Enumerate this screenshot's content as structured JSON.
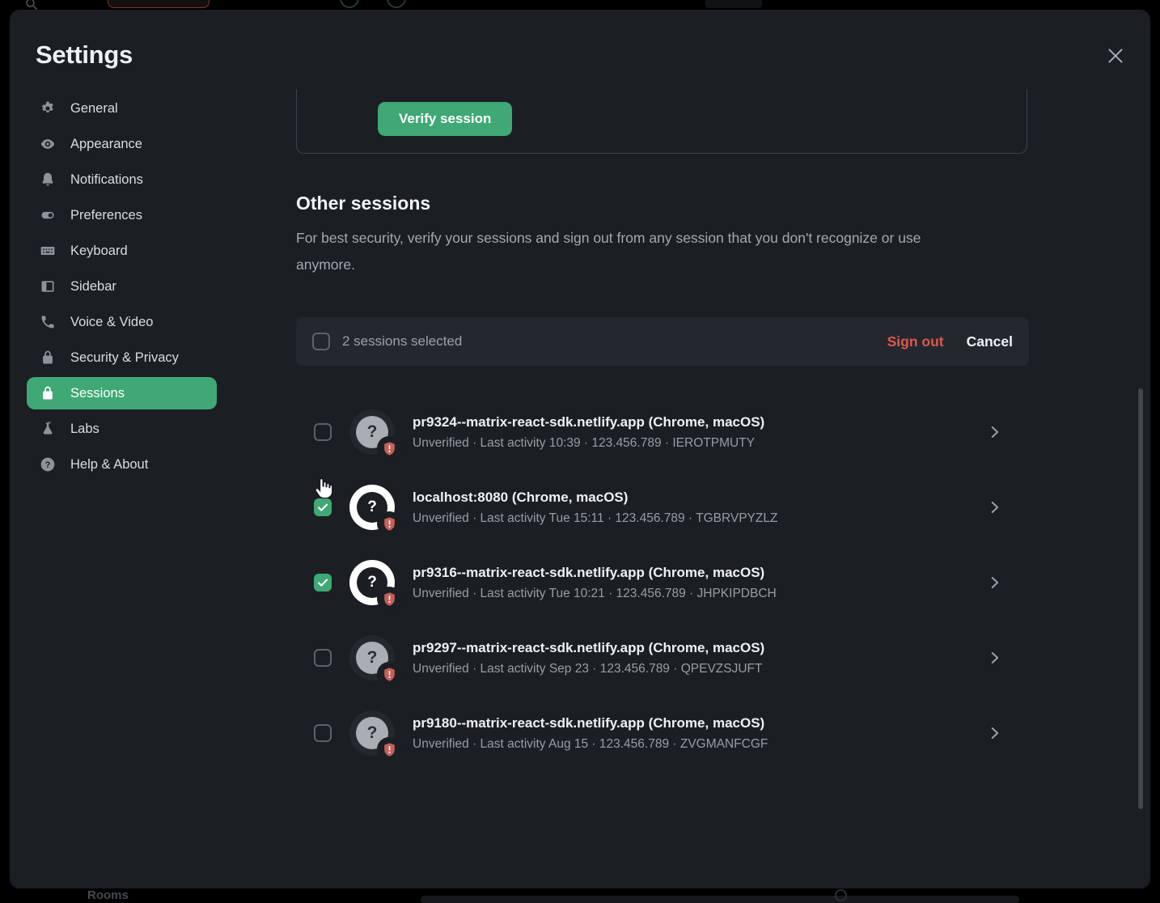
{
  "modal": {
    "title": "Settings"
  },
  "sidebar": {
    "items": [
      {
        "id": "general",
        "label": "General",
        "icon": "gear-icon",
        "active": false
      },
      {
        "id": "appearance",
        "label": "Appearance",
        "icon": "eye-icon",
        "active": false
      },
      {
        "id": "notifications",
        "label": "Notifications",
        "icon": "bell-icon",
        "active": false
      },
      {
        "id": "preferences",
        "label": "Preferences",
        "icon": "toggle-icon",
        "active": false
      },
      {
        "id": "keyboard",
        "label": "Keyboard",
        "icon": "keyboard-icon",
        "active": false
      },
      {
        "id": "sidebar",
        "label": "Sidebar",
        "icon": "sidebar-icon",
        "active": false
      },
      {
        "id": "voice-video",
        "label": "Voice & Video",
        "icon": "phone-icon",
        "active": false
      },
      {
        "id": "security-privacy",
        "label": "Security & Privacy",
        "icon": "lock-icon",
        "active": false
      },
      {
        "id": "sessions",
        "label": "Sessions",
        "icon": "lock-icon",
        "active": true
      },
      {
        "id": "labs",
        "label": "Labs",
        "icon": "flask-icon",
        "active": false
      },
      {
        "id": "help-about",
        "label": "Help & About",
        "icon": "help-icon",
        "active": false
      }
    ]
  },
  "content": {
    "verify_card": {
      "button_label": "Verify session"
    },
    "other_sessions": {
      "heading": "Other sessions",
      "description": "For best security, verify your sessions and sign out from any session that you don't recognize or use anymore."
    },
    "selection_bar": {
      "selected_text": "2 sessions selected",
      "sign_out_label": "Sign out",
      "cancel_label": "Cancel"
    },
    "sessions": [
      {
        "name": "pr9324--matrix-react-sdk.netlify.app (Chrome, macOS)",
        "status": "Unverified",
        "last_activity": "Last activity 10:39",
        "ip": "123.456.789",
        "device_id": "IEROTPMUTY",
        "checked": false
      },
      {
        "name": "localhost:8080 (Chrome, macOS)",
        "status": "Unverified",
        "last_activity": "Last activity Tue 15:11",
        "ip": "123.456.789",
        "device_id": "TGBRVPYZLZ",
        "checked": true
      },
      {
        "name": "pr9316--matrix-react-sdk.netlify.app (Chrome, macOS)",
        "status": "Unverified",
        "last_activity": "Last activity Tue 10:21",
        "ip": "123.456.789",
        "device_id": "JHPKIPDBCH",
        "checked": true
      },
      {
        "name": "pr9297--matrix-react-sdk.netlify.app (Chrome, macOS)",
        "status": "Unverified",
        "last_activity": "Last activity Sep 23",
        "ip": "123.456.789",
        "device_id": "QPEVZSJUFT",
        "checked": false
      },
      {
        "name": "pr9180--matrix-react-sdk.netlify.app (Chrome, macOS)",
        "status": "Unverified",
        "last_activity": "Last activity Aug 15",
        "ip": "123.456.789",
        "device_id": "ZVGMANFCGF",
        "checked": false
      }
    ]
  },
  "background": {
    "rooms_label": "Rooms"
  },
  "colors": {
    "backdrop": "#000000",
    "modal_bg": "#1b1f24",
    "bar_bg": "#24282e",
    "accent_green": "#3fa874",
    "danger_red": "#e0564c",
    "shield_red": "#c75f58",
    "text_primary": "#eef1f4",
    "text_secondary": "#969da5"
  }
}
